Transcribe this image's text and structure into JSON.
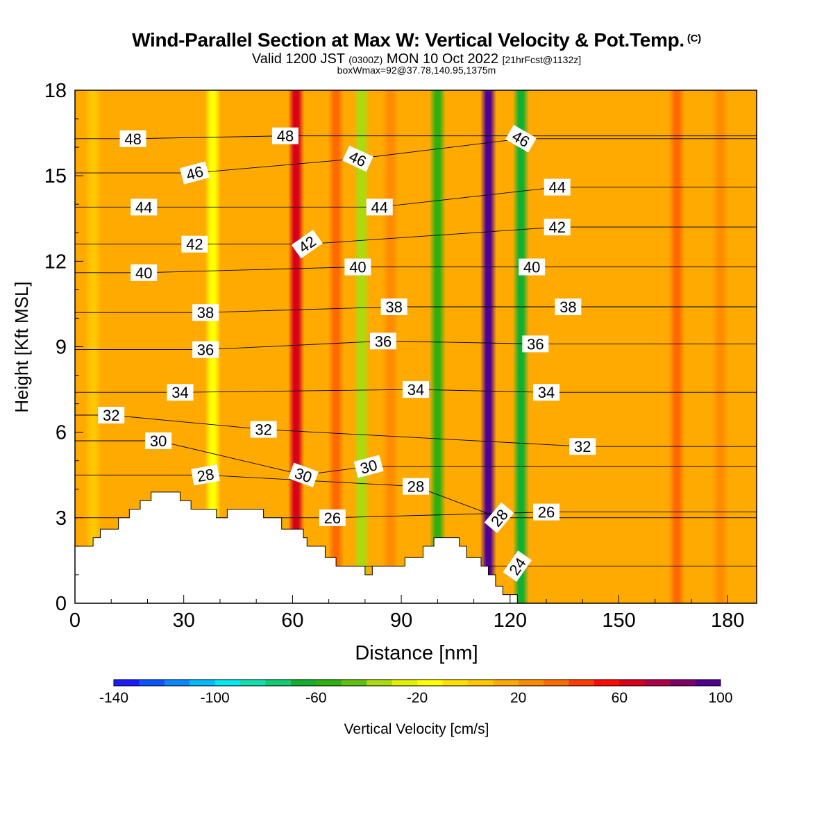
{
  "header": {
    "title": "Wind-Parallel Section at Max W: Vertical Velocity & Pot.Temp.",
    "copyright": "(C)",
    "valid_prefix": "Valid 1200 JST",
    "valid_utc": "(0300Z)",
    "valid_date": "MON 10 Oct 2022",
    "forecast": "[21hrFcst@1132z]",
    "box_info": "boxWmax=92@37.78,140.95,1375m"
  },
  "chart_data": {
    "type": "heatmap",
    "xlabel": "Distance [nm]",
    "ylabel": "Height [Kft MSL]",
    "xlim": [
      0,
      188
    ],
    "ylim": [
      0,
      18
    ],
    "x_ticks": [
      0,
      30,
      60,
      90,
      120,
      150,
      180
    ],
    "y_ticks": [
      0,
      3,
      6,
      9,
      12,
      15,
      18
    ],
    "background_w": 10,
    "w_columns": [
      {
        "x": 5,
        "w": 8
      },
      {
        "x": 24,
        "w": 12
      },
      {
        "x": 38,
        "w": -12
      },
      {
        "x": 44,
        "w": 14
      },
      {
        "x": 61,
        "w": 68
      },
      {
        "x": 72,
        "w": 30
      },
      {
        "x": 79,
        "w": -40
      },
      {
        "x": 87,
        "w": 26
      },
      {
        "x": 100,
        "w": -56
      },
      {
        "x": 114,
        "w": 92
      },
      {
        "x": 123,
        "w": -62
      },
      {
        "x": 130,
        "w": 18
      },
      {
        "x": 166,
        "w": 34
      },
      {
        "x": 178,
        "w": 20
      }
    ],
    "terrain": [
      [
        0,
        2.0
      ],
      [
        3,
        2.0
      ],
      [
        5,
        2.3
      ],
      [
        7,
        2.6
      ],
      [
        10,
        2.6
      ],
      [
        12,
        3.0
      ],
      [
        15,
        3.3
      ],
      [
        18,
        3.6
      ],
      [
        21,
        3.9
      ],
      [
        27,
        3.9
      ],
      [
        29,
        3.6
      ],
      [
        32,
        3.3
      ],
      [
        37,
        3.3
      ],
      [
        39,
        3.0
      ],
      [
        42,
        3.3
      ],
      [
        49,
        3.3
      ],
      [
        52,
        3.0
      ],
      [
        55,
        3.0
      ],
      [
        57,
        2.6
      ],
      [
        61,
        2.6
      ],
      [
        63,
        2.3
      ],
      [
        64,
        2.0
      ],
      [
        69,
        1.6
      ],
      [
        72,
        1.3
      ],
      [
        78,
        1.3
      ],
      [
        80,
        1.0
      ],
      [
        82,
        1.3
      ],
      [
        89,
        1.3
      ],
      [
        91,
        1.6
      ],
      [
        94,
        1.6
      ],
      [
        96,
        2.0
      ],
      [
        99,
        2.3
      ],
      [
        103,
        2.3
      ],
      [
        106,
        2.0
      ],
      [
        108,
        1.6
      ],
      [
        112,
        1.3
      ],
      [
        114,
        1.0
      ],
      [
        116,
        0.6
      ],
      [
        117,
        0.6
      ],
      [
        118,
        0.3
      ],
      [
        120,
        0.3
      ]
    ],
    "theta_contours": [
      {
        "value": 24,
        "label_x": 122,
        "label_y": 1.3,
        "angle": -55
      },
      {
        "value": 26,
        "label_x": 71,
        "label_y": 3.0,
        "angle": 0
      },
      {
        "value": 26,
        "label_x": 130,
        "label_y": 3.2,
        "angle": 0
      },
      {
        "value": 28,
        "label_x": 36,
        "label_y": 4.5,
        "angle": -10
      },
      {
        "value": 28,
        "label_x": 94,
        "label_y": 4.1,
        "angle": 0
      },
      {
        "value": 28,
        "label_x": 117,
        "label_y": 3.0,
        "angle": -50
      },
      {
        "value": 30,
        "label_x": 23,
        "label_y": 5.7,
        "angle": 0
      },
      {
        "value": 30,
        "label_x": 63,
        "label_y": 4.5,
        "angle": 20
      },
      {
        "value": 30,
        "label_x": 81,
        "label_y": 4.8,
        "angle": -15
      },
      {
        "value": 32,
        "label_x": 10,
        "label_y": 6.6,
        "angle": 0
      },
      {
        "value": 32,
        "label_x": 52,
        "label_y": 6.1,
        "angle": 0
      },
      {
        "value": 32,
        "label_x": 140,
        "label_y": 5.5,
        "angle": 0
      },
      {
        "value": 34,
        "label_x": 29,
        "label_y": 7.4,
        "angle": 0
      },
      {
        "value": 34,
        "label_x": 94,
        "label_y": 7.5,
        "angle": 0
      },
      {
        "value": 34,
        "label_x": 130,
        "label_y": 7.4,
        "angle": 0
      },
      {
        "value": 36,
        "label_x": 36,
        "label_y": 8.9,
        "angle": 0
      },
      {
        "value": 36,
        "label_x": 85,
        "label_y": 9.2,
        "angle": 0
      },
      {
        "value": 36,
        "label_x": 127,
        "label_y": 9.1,
        "angle": 0
      },
      {
        "value": 38,
        "label_x": 36,
        "label_y": 10.2,
        "angle": 0
      },
      {
        "value": 38,
        "label_x": 88,
        "label_y": 10.4,
        "angle": 0
      },
      {
        "value": 38,
        "label_x": 136,
        "label_y": 10.4,
        "angle": 0
      },
      {
        "value": 40,
        "label_x": 19,
        "label_y": 11.6,
        "angle": 0
      },
      {
        "value": 40,
        "label_x": 78,
        "label_y": 11.8,
        "angle": 0
      },
      {
        "value": 40,
        "label_x": 126,
        "label_y": 11.8,
        "angle": 0
      },
      {
        "value": 42,
        "label_x": 33,
        "label_y": 12.6,
        "angle": 0
      },
      {
        "value": 42,
        "label_x": 64,
        "label_y": 12.6,
        "angle": -35
      },
      {
        "value": 42,
        "label_x": 133,
        "label_y": 13.2,
        "angle": 0
      },
      {
        "value": 44,
        "label_x": 19,
        "label_y": 13.9,
        "angle": 0
      },
      {
        "value": 44,
        "label_x": 84,
        "label_y": 13.9,
        "angle": 0
      },
      {
        "value": 44,
        "label_x": 133,
        "label_y": 14.6,
        "angle": 0
      },
      {
        "value": 46,
        "label_x": 33,
        "label_y": 15.1,
        "angle": -15
      },
      {
        "value": 46,
        "label_x": 78,
        "label_y": 15.6,
        "angle": 25
      },
      {
        "value": 46,
        "label_x": 123,
        "label_y": 16.3,
        "angle": 30
      },
      {
        "value": 48,
        "label_x": 16,
        "label_y": 16.3,
        "angle": 0
      },
      {
        "value": 48,
        "label_x": 58,
        "label_y": 16.4,
        "angle": 0
      }
    ]
  },
  "colorbar": {
    "label": "Vertical Velocity [cm/s]",
    "min": -140,
    "max": 100,
    "step": 10,
    "tick_values": [
      -140,
      -100,
      -60,
      -20,
      20,
      60,
      100
    ],
    "tick_labels": [
      "-140",
      "-100",
      "-60",
      "-20",
      "20",
      "60",
      "100"
    ],
    "colors": [
      "#1a1aff",
      "#0a55ff",
      "#0a88ff",
      "#00bbff",
      "#00e8f0",
      "#10e0b0",
      "#10cc70",
      "#10b030",
      "#30b010",
      "#60c010",
      "#a8dc10",
      "#e0f000",
      "#ffff00",
      "#ffe000",
      "#ffc800",
      "#ffaa00",
      "#ff8c00",
      "#ff6a00",
      "#ff3c00",
      "#ff0a00",
      "#d8001a",
      "#b0004a",
      "#80006a",
      "#500090"
    ]
  }
}
